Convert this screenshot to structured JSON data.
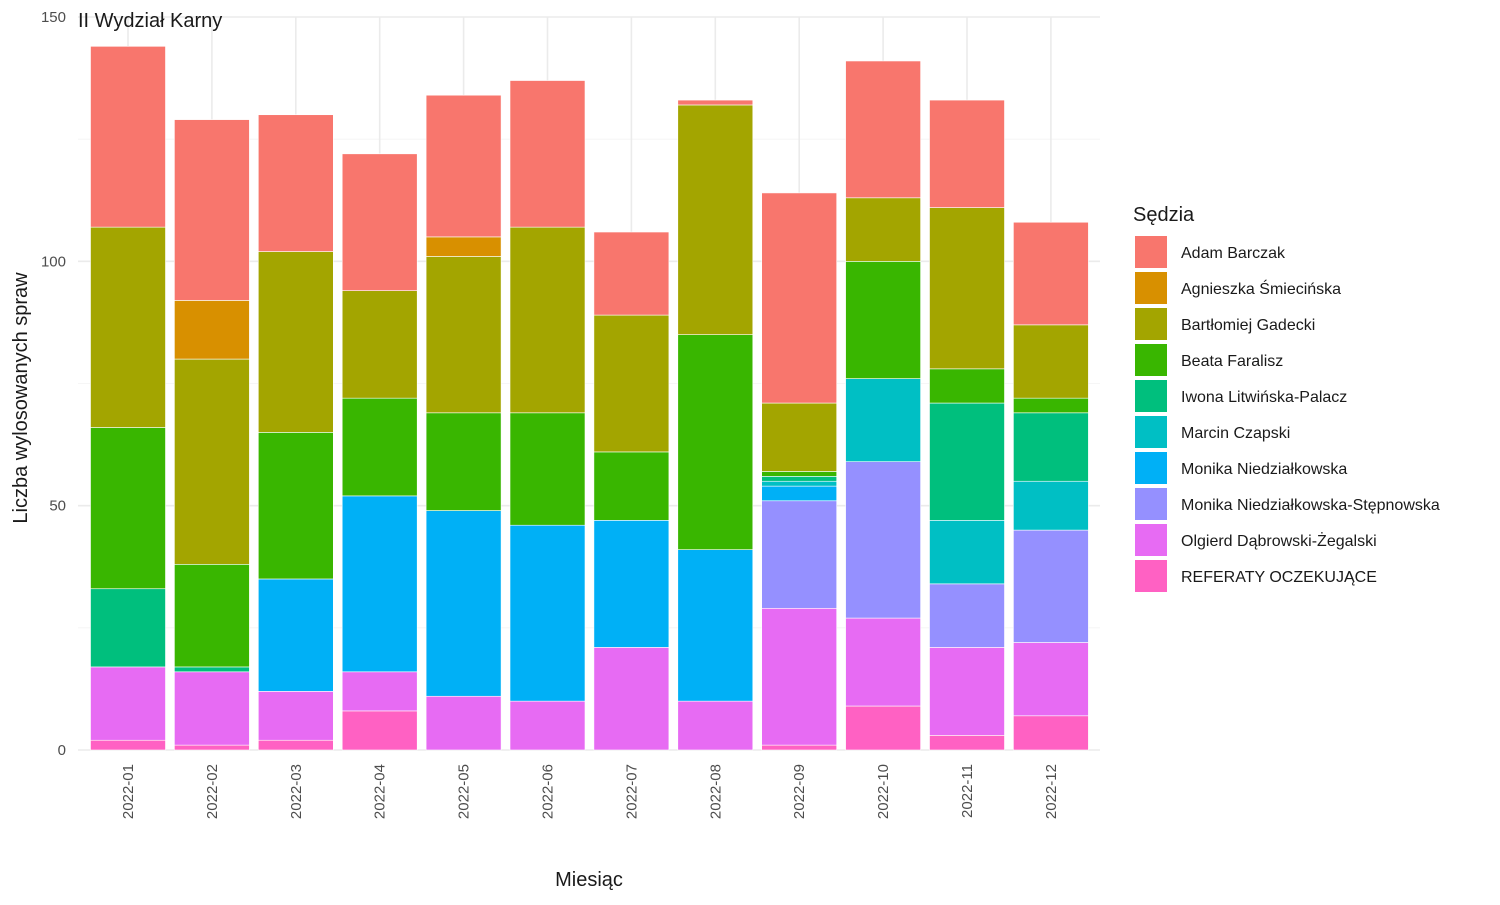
{
  "chart_data": {
    "type": "bar",
    "stacked": true,
    "title": "II Wydział Karny",
    "xlabel": "Miesiąc",
    "ylabel": "Liczba wylosowanych spraw",
    "ylim": [
      0,
      150
    ],
    "yticks": [
      0,
      50,
      100,
      150
    ],
    "grid": true,
    "legend_title": "Sędzia",
    "legend_position": "right",
    "categories": [
      "2022-01",
      "2022-02",
      "2022-03",
      "2022-04",
      "2022-05",
      "2022-06",
      "2022-07",
      "2022-08",
      "2022-09",
      "2022-10",
      "2022-11",
      "2022-12"
    ],
    "series": [
      {
        "name": "REFERATY OCZEKUJĄCE",
        "color": "#FF61C3",
        "values": [
          2,
          1,
          2,
          8,
          0,
          0,
          0,
          0,
          1,
          9,
          3,
          7
        ]
      },
      {
        "name": "Olgierd Dąbrowski-Żegalski",
        "color": "#E76BF3",
        "values": [
          15,
          15,
          10,
          8,
          11,
          10,
          21,
          10,
          28,
          18,
          18,
          15
        ]
      },
      {
        "name": "Monika Niedziałkowska-Stępnowska",
        "color": "#9590FF",
        "values": [
          0,
          0,
          0,
          0,
          0,
          0,
          0,
          0,
          22,
          32,
          13,
          23
        ]
      },
      {
        "name": "Monika Niedziałkowska",
        "color": "#00B0F6",
        "values": [
          0,
          0,
          23,
          36,
          38,
          36,
          26,
          31,
          3,
          0,
          0,
          0
        ]
      },
      {
        "name": "Marcin Czapski",
        "color": "#00BFC4",
        "values": [
          0,
          0,
          0,
          0,
          0,
          0,
          0,
          0,
          1,
          17,
          13,
          10
        ]
      },
      {
        "name": "Iwona Litwińska-Palacz",
        "color": "#00BF7D",
        "values": [
          16,
          1,
          0,
          0,
          0,
          0,
          0,
          0,
          1,
          0,
          24,
          14
        ]
      },
      {
        "name": "Beata Faralisz",
        "color": "#39B600",
        "values": [
          33,
          21,
          30,
          20,
          20,
          23,
          14,
          44,
          1,
          24,
          7,
          3
        ]
      },
      {
        "name": "Bartłomiej Gadecki",
        "color": "#A3A500",
        "values": [
          41,
          42,
          37,
          22,
          32,
          38,
          28,
          47,
          14,
          13,
          33,
          15
        ]
      },
      {
        "name": "Agnieszka Śmiecińska",
        "color": "#D89000",
        "values": [
          0,
          12,
          0,
          0,
          4,
          0,
          0,
          0,
          0,
          0,
          0,
          0
        ]
      },
      {
        "name": "Adam Barczak",
        "color": "#F8766D",
        "values": [
          37,
          37,
          28,
          28,
          29,
          30,
          17,
          1,
          43,
          28,
          22,
          21
        ]
      }
    ],
    "legend_order": [
      "Adam Barczak",
      "Agnieszka Śmiecińska",
      "Bartłomiej Gadecki",
      "Beata Faralisz",
      "Iwona Litwińska-Palacz",
      "Marcin Czapski",
      "Monika Niedziałkowska",
      "Monika Niedziałkowska-Stępnowska",
      "Olgierd Dąbrowski-Żegalski",
      "REFERATY OCZEKUJĄCE"
    ]
  }
}
